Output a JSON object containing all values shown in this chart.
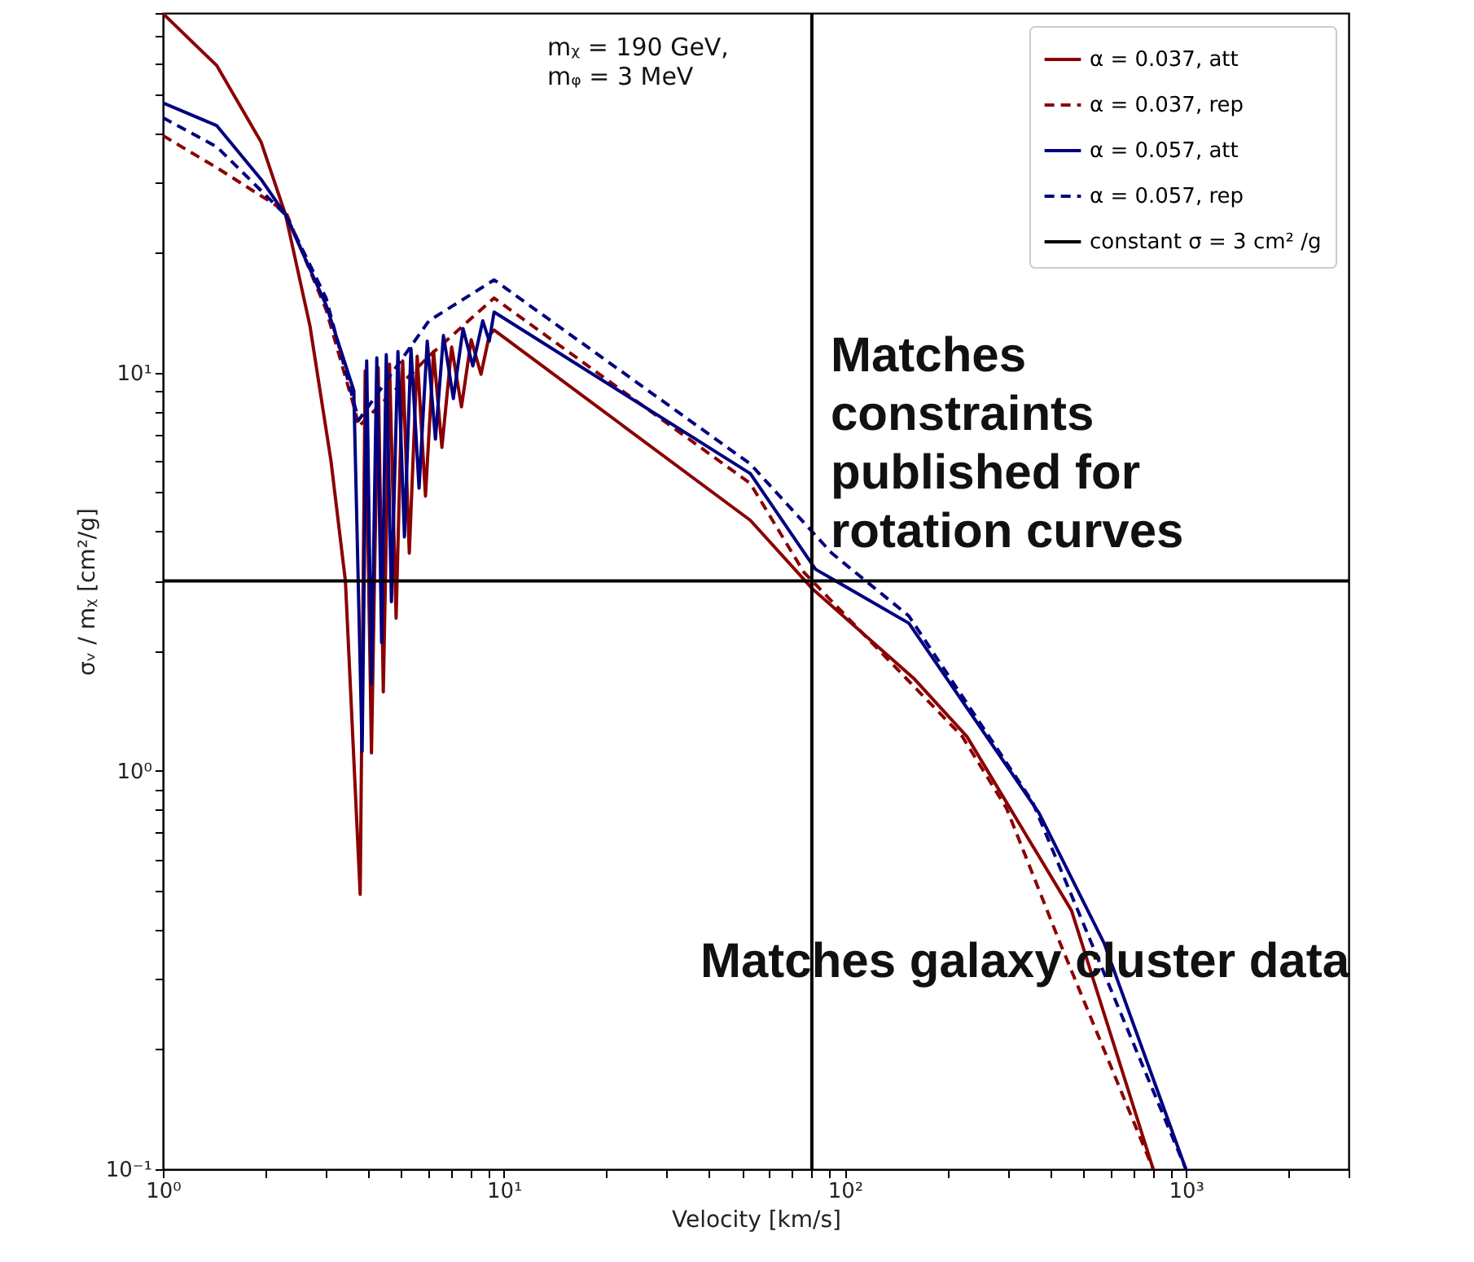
{
  "chart_data": {
    "type": "line",
    "xlabel": "Velocity [km/s]",
    "ylabel": "σᵥ / mᵪ [cm²/g]",
    "log": "xy",
    "grid": false,
    "legend": "top right",
    "marker": "none",
    "xlim": [
      1,
      3000
    ],
    "ylim": [
      0.1,
      80
    ],
    "xticks": [
      {
        "value": 1,
        "label": "10⁰"
      },
      {
        "value": 2,
        "label": null
      },
      {
        "value": 3,
        "label": null
      },
      {
        "value": 4,
        "label": null
      },
      {
        "value": 5,
        "label": null
      },
      {
        "value": 6,
        "label": null
      },
      {
        "value": 7,
        "label": null
      },
      {
        "value": 8,
        "label": null
      },
      {
        "value": 9,
        "label": null
      },
      {
        "value": 10,
        "label": "10¹"
      },
      {
        "value": 20,
        "label": null
      },
      {
        "value": 30,
        "label": null
      },
      {
        "value": 40,
        "label": null
      },
      {
        "value": 50,
        "label": null
      },
      {
        "value": 60,
        "label": null
      },
      {
        "value": 70,
        "label": null
      },
      {
        "value": 80,
        "label": null
      },
      {
        "value": 90,
        "label": null
      },
      {
        "value": 100,
        "label": "10²"
      },
      {
        "value": 200,
        "label": null
      },
      {
        "value": 300,
        "label": null
      },
      {
        "value": 400,
        "label": null
      },
      {
        "value": 500,
        "label": null
      },
      {
        "value": 600,
        "label": null
      },
      {
        "value": 700,
        "label": null
      },
      {
        "value": 800,
        "label": null
      },
      {
        "value": 900,
        "label": null
      },
      {
        "value": 1000,
        "label": "10³"
      },
      {
        "value": 2000,
        "label": null
      },
      {
        "value": 3000,
        "label": null
      }
    ],
    "yticks": [
      {
        "value": 0.1,
        "label": "10⁻¹"
      },
      {
        "value": 0.2,
        "label": null
      },
      {
        "value": 0.3,
        "label": null
      },
      {
        "value": 0.4,
        "label": null
      },
      {
        "value": 0.5,
        "label": null
      },
      {
        "value": 0.6,
        "label": null
      },
      {
        "value": 0.7,
        "label": null
      },
      {
        "value": 0.8,
        "label": null
      },
      {
        "value": 0.9,
        "label": null
      },
      {
        "value": 1,
        "label": "10⁰"
      },
      {
        "value": 2,
        "label": null
      },
      {
        "value": 3,
        "label": null
      },
      {
        "value": 4,
        "label": null
      },
      {
        "value": 5,
        "label": null
      },
      {
        "value": 6,
        "label": null
      },
      {
        "value": 7,
        "label": null
      },
      {
        "value": 8,
        "label": null
      },
      {
        "value": 9,
        "label": null
      },
      {
        "value": 10,
        "label": "10¹"
      },
      {
        "value": 20,
        "label": null
      },
      {
        "value": 30,
        "label": null
      },
      {
        "value": 40,
        "label": null
      },
      {
        "value": 50,
        "label": null
      },
      {
        "value": 60,
        "label": null
      },
      {
        "value": 70,
        "label": null
      },
      {
        "value": 80,
        "label": null
      }
    ],
    "series": [
      {
        "name": "α = 0.037, att",
        "color": "#8b0000",
        "line_style": "solid",
        "x": [
          1,
          1.44,
          1.94,
          2.29,
          2.7,
          3.11,
          3.43,
          3.79,
          3.92,
          4.09,
          4.28,
          4.43,
          4.62,
          4.83,
          5.05,
          5.28,
          5.57,
          5.89,
          6.22,
          6.58,
          7.03,
          7.51,
          8.02,
          8.57,
          9.06,
          9.36,
          52.8,
          80.2,
          159,
          228,
          462,
          802
        ],
        "values": [
          79.8,
          59,
          38,
          24.9,
          13.1,
          6.02,
          3,
          0.49,
          10.1,
          1.11,
          10.3,
          1.58,
          10.5,
          2.42,
          10.7,
          3.52,
          11,
          4.9,
          11.3,
          6.49,
          11.6,
          8.21,
          12.1,
          9.91,
          12.4,
          12.8,
          4.26,
          2.87,
          1.71,
          1.22,
          0.446,
          0.1
        ]
      },
      {
        "name": "α = 0.037, rep",
        "color": "#8b0000",
        "line_style": "dashed",
        "x": [
          1,
          1.44,
          2.29,
          3.01,
          3.67,
          3.75,
          6.03,
          9.36,
          52.8,
          75.9,
          221,
          298,
          428,
          802
        ],
        "values": [
          39.4,
          32.7,
          25.4,
          14.4,
          7.98,
          7.33,
          11,
          15.4,
          5.27,
          3.15,
          1.22,
          0.805,
          0.369,
          0.1
        ]
      },
      {
        "name": "α = 0.057, att",
        "color": "#000080",
        "line_style": "solid",
        "x": [
          1,
          1.44,
          1.94,
          2.29,
          3.01,
          3.63,
          3.84,
          3.96,
          4.09,
          4.24,
          4.38,
          4.52,
          4.68,
          4.89,
          5.11,
          5.34,
          5.64,
          5.96,
          6.3,
          6.65,
          7.11,
          7.59,
          8.11,
          8.67,
          9.06,
          9.36,
          52.8,
          82,
          154,
          371,
          576,
          1000
        ],
        "values": [
          47.6,
          41.7,
          30.6,
          24.9,
          14.8,
          9.02,
          1.12,
          10.7,
          1.66,
          10.9,
          2.1,
          11.1,
          2.66,
          11.3,
          3.87,
          11.5,
          5.13,
          12,
          6.81,
          12.4,
          8.61,
          12.9,
          10.4,
          13.5,
          12,
          14.2,
          5.58,
          3.21,
          2.35,
          0.784,
          0.369,
          0.1
        ]
      },
      {
        "name": "α = 0.057, rep",
        "color": "#000080",
        "line_style": "dashed",
        "x": [
          1,
          1.44,
          2.29,
          3.01,
          3.75,
          6.03,
          9.36,
          52.8,
          91.6,
          154,
          355,
          615,
          1000
        ],
        "values": [
          43.7,
          36.9,
          24.9,
          15.4,
          7.6,
          13.5,
          17.1,
          5.9,
          3.52,
          2.45,
          0.836,
          0.271,
          0.1
        ]
      }
    ],
    "ref_lines": [
      {
        "axis": "y",
        "value": 3,
        "label": "constant σ = 3 cm² /g",
        "color": "#000000"
      },
      {
        "axis": "x",
        "value": 80,
        "color": "#000000"
      }
    ],
    "annotations": [
      "mᵪ = 190 GeV,\nmᵩ = 3 MeV",
      "Matches constraints published for rotation curves",
      "Matches galaxy cluster data"
    ]
  }
}
